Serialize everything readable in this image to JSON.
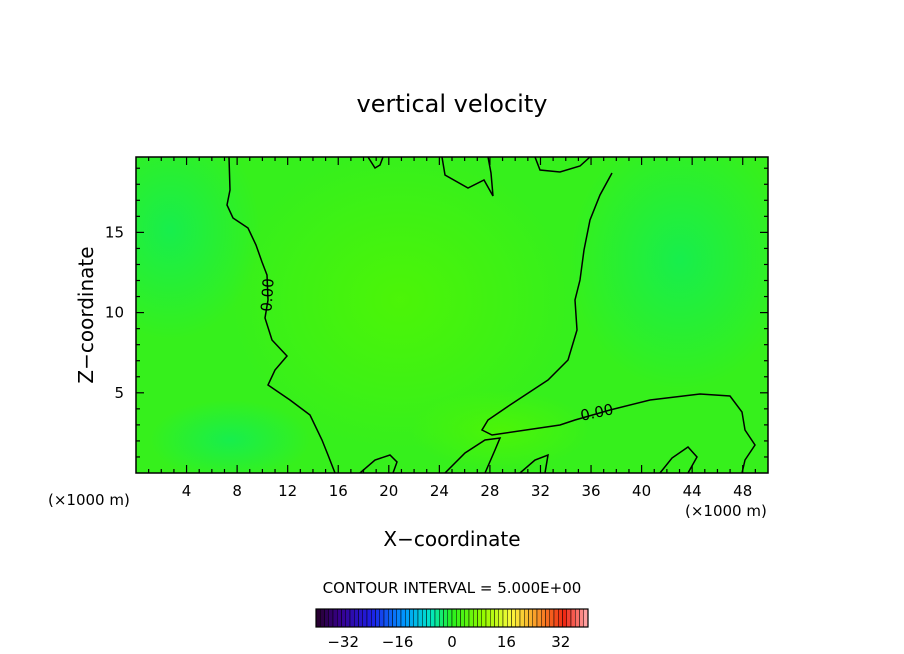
{
  "chart_data": {
    "type": "contour",
    "title": "vertical velocity",
    "xlabel": "X−coordinate",
    "ylabel": "Z−coordinate",
    "x_unit_left": "(×1000 m)",
    "x_unit_right": "(×1000 m)",
    "xlim": [
      0,
      50
    ],
    "ylim": [
      0,
      19.7
    ],
    "x_ticks": [
      4,
      8,
      12,
      16,
      20,
      24,
      28,
      32,
      36,
      40,
      44,
      48
    ],
    "y_ticks": [
      5,
      10,
      15
    ],
    "contour_label": "0.00",
    "contour_interval_label": "CONTOUR INTERVAL = 5.000E+00",
    "colorbar": {
      "range": [
        -40,
        40
      ],
      "ticks": [
        -32,
        -16,
        0,
        16,
        32
      ],
      "tick_labels": [
        "−32",
        "−16",
        "0",
        "16",
        "32"
      ]
    },
    "colors": {
      "field_base": "#36f01c",
      "field_positive_core": "#48f20a",
      "field_negative_core": "#1ef046",
      "contour": "#000000"
    }
  }
}
